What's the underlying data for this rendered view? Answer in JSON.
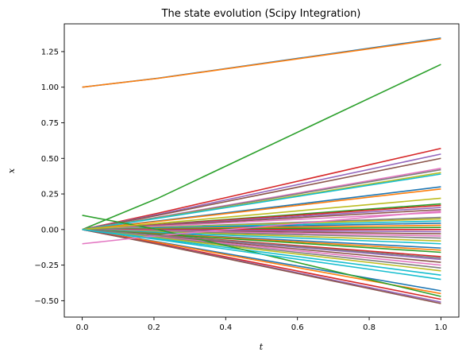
{
  "chart_data": {
    "type": "line",
    "title": "The state evolution (Scipy Integration)",
    "xlabel": "t",
    "ylabel": "x",
    "xlim": [
      -0.05,
      1.05
    ],
    "ylim": [
      -0.615,
      1.445
    ],
    "x": [
      0,
      0.2111,
      1.0
    ],
    "xticks": [
      0.0,
      0.2,
      0.4,
      0.6,
      0.8,
      1.0
    ],
    "xtick_labels": [
      "0.0",
      "0.2",
      "0.4",
      "0.6",
      "0.8",
      "1.0"
    ],
    "yticks": [
      -0.5,
      -0.25,
      0.0,
      0.25,
      0.5,
      0.75,
      1.0,
      1.25
    ],
    "ytick_labels": [
      "−0.50",
      "−0.25",
      "0.00",
      "0.25",
      "0.50",
      "0.75",
      "1.00",
      "1.25"
    ],
    "grid": false,
    "series_colors": [
      "#1f77b4",
      "#ff7f0e",
      "#2ca02c",
      "#d62728",
      "#9467bd",
      "#8c564b",
      "#e377c2",
      "#7f7f7f",
      "#bcbd22",
      "#17becf"
    ],
    "series": [
      {
        "values": [
          1.0,
          1.063,
          1.345
        ]
      },
      {
        "values": [
          1.0,
          1.062,
          1.34
        ]
      },
      {
        "values": [
          0.0,
          0.22,
          1.16
        ]
      },
      {
        "values": [
          0.0,
          0.115,
          0.57
        ]
      },
      {
        "values": [
          0.0,
          0.106,
          0.53
        ]
      },
      {
        "values": [
          0.0,
          0.1,
          0.5
        ]
      },
      {
        "values": [
          0.0,
          0.087,
          0.43
        ]
      },
      {
        "values": [
          0.0,
          0.085,
          0.42
        ]
      },
      {
        "values": [
          0.0,
          0.081,
          0.4
        ]
      },
      {
        "values": [
          0.0,
          0.079,
          0.39
        ]
      },
      {
        "values": [
          0.0,
          0.06,
          0.3
        ]
      },
      {
        "values": [
          0.0,
          0.057,
          0.285
        ]
      },
      {
        "values": [
          0.0,
          0.036,
          0.18
        ]
      },
      {
        "values": [
          0.0,
          0.034,
          0.17
        ]
      },
      {
        "values": [
          0.0,
          0.031,
          0.155
        ]
      },
      {
        "values": [
          0.0,
          0.028,
          0.14
        ]
      },
      {
        "values": [
          0.0,
          0.024,
          0.12
        ]
      },
      {
        "values": [
          0.0,
          0.017,
          0.085
        ]
      },
      {
        "values": [
          0.0,
          0.015,
          0.075
        ]
      },
      {
        "values": [
          0.0,
          0.012,
          0.06
        ]
      },
      {
        "values": [
          0.0,
          0.009,
          0.045
        ]
      },
      {
        "values": [
          0.0,
          0.006,
          0.03
        ]
      },
      {
        "values": [
          0.0,
          0.003,
          0.015
        ]
      },
      {
        "values": [
          0.0,
          0.0,
          0.0
        ]
      },
      {
        "values": [
          0.0,
          -0.003,
          -0.015
        ]
      },
      {
        "values": [
          0.0,
          -0.006,
          -0.03
        ]
      },
      {
        "values": [
          0.0,
          -0.009,
          -0.045
        ]
      },
      {
        "values": [
          0.0,
          -0.012,
          -0.06
        ]
      },
      {
        "values": [
          0.0,
          -0.016,
          -0.08
        ]
      },
      {
        "values": [
          0.0,
          -0.02,
          -0.1
        ]
      },
      {
        "values": [
          0.0,
          -0.026,
          -0.13
        ]
      },
      {
        "values": [
          0.0,
          -0.029,
          -0.145
        ]
      },
      {
        "values": [
          0.0,
          -0.032,
          -0.16
        ]
      },
      {
        "values": [
          0.0,
          -0.038,
          -0.19
        ]
      },
      {
        "values": [
          0.0,
          -0.042,
          -0.21
        ]
      },
      {
        "values": [
          0.0,
          -0.046,
          -0.23
        ]
      },
      {
        "values": [
          0.0,
          -0.05,
          -0.25
        ]
      },
      {
        "values": [
          0.0,
          -0.054,
          -0.27
        ]
      },
      {
        "values": [
          0.0,
          -0.058,
          -0.29
        ]
      },
      {
        "values": [
          0.0,
          -0.064,
          -0.32
        ]
      },
      {
        "values": [
          0.0,
          -0.086,
          -0.43
        ]
      },
      {
        "values": [
          0.0,
          -0.09,
          -0.45
        ]
      },
      {
        "values": [
          0.1,
          0.0,
          -0.47
        ]
      },
      {
        "values": [
          0.0,
          -0.098,
          -0.49
        ]
      },
      {
        "values": [
          0.0,
          -0.102,
          -0.51
        ]
      },
      {
        "values": [
          0.0,
          -0.104,
          -0.52
        ]
      },
      {
        "values": [
          -0.1,
          -0.043,
          0.13
        ]
      },
      {
        "values": [
          0.0,
          -0.04,
          -0.2
        ]
      },
      {
        "values": [
          0.0,
          0.044,
          0.22
        ]
      },
      {
        "values": [
          0.0,
          -0.07,
          -0.35
        ]
      }
    ]
  }
}
